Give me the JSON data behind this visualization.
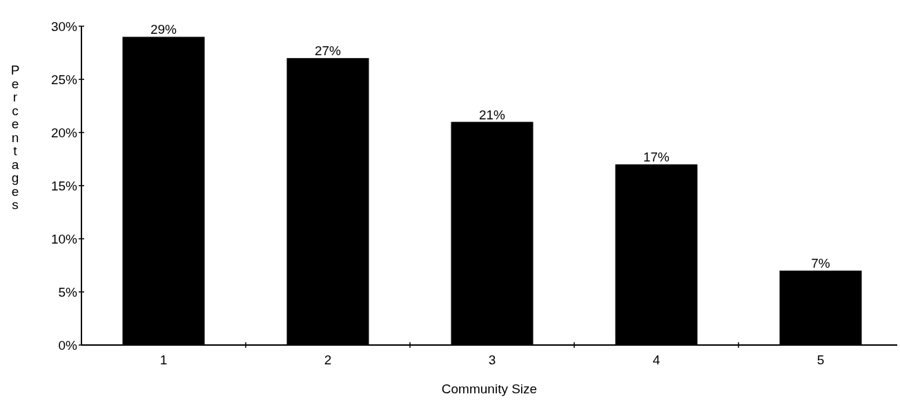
{
  "chart_data": {
    "type": "bar",
    "xlabel": "Community Size",
    "ylabel": "Percentages",
    "categories": [
      "1",
      "2",
      "3",
      "4",
      "5"
    ],
    "values": [
      29,
      27,
      21,
      17,
      7
    ],
    "value_labels": [
      "29%",
      "27%",
      "21%",
      "17%",
      "7%"
    ],
    "color": "#000000",
    "ylim": [
      0,
      30
    ],
    "yticks": [
      {
        "value": 0,
        "label": "0%"
      },
      {
        "value": 5,
        "label": "5%"
      },
      {
        "value": 10,
        "label": "10%"
      },
      {
        "value": 15,
        "label": "15%"
      },
      {
        "value": 20,
        "label": "20%"
      },
      {
        "value": 25,
        "label": "25%"
      },
      {
        "value": 30,
        "label": "30%"
      }
    ],
    "grid": false
  }
}
